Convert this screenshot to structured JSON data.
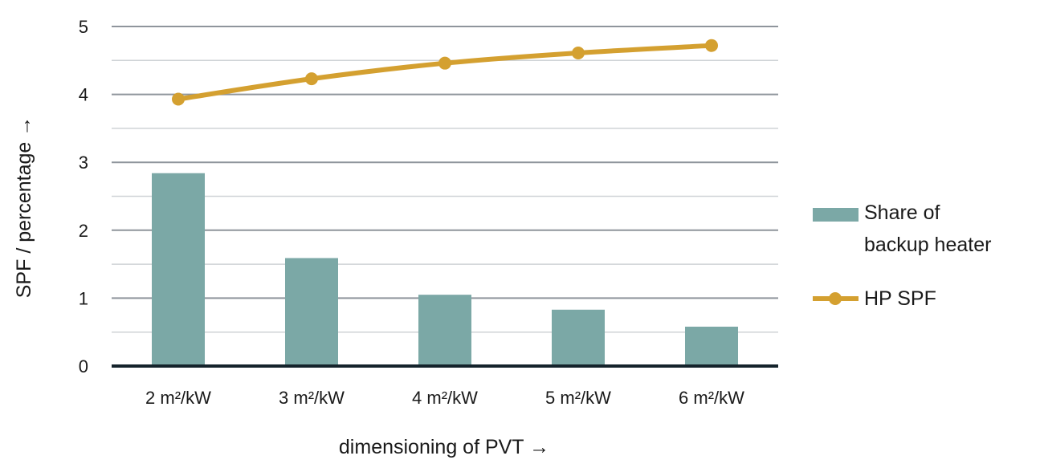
{
  "chart_data": {
    "type": "bar",
    "categories": [
      "2 m²/kW",
      "3 m²/kW",
      "4 m²/kW",
      "5 m²/kW",
      "6 m²/kW"
    ],
    "series": [
      {
        "name": "Share of backup heater",
        "kind": "bar",
        "values": [
          2.84,
          1.59,
          1.05,
          0.83,
          0.58
        ]
      },
      {
        "name": "HP SPF",
        "kind": "line",
        "values": [
          3.93,
          4.23,
          4.46,
          4.61,
          4.72
        ]
      }
    ],
    "xlabel": "dimensioning of PVT →",
    "ylabel": "SPF / percentage →",
    "ylim": [
      0,
      5
    ],
    "yticks": [
      "0",
      "1",
      "2",
      "3",
      "4",
      "5"
    ],
    "grid": true,
    "legend_position": "right",
    "legend": {
      "bar_lines": [
        "Share of",
        "backup heater"
      ],
      "line_label": "HP SPF"
    },
    "colors": {
      "bar": "#7ba8a6",
      "line": "#d4a030",
      "grid_major": "#8f959c",
      "grid_minor": "#cfd3d6",
      "baseline": "#14232b"
    }
  }
}
